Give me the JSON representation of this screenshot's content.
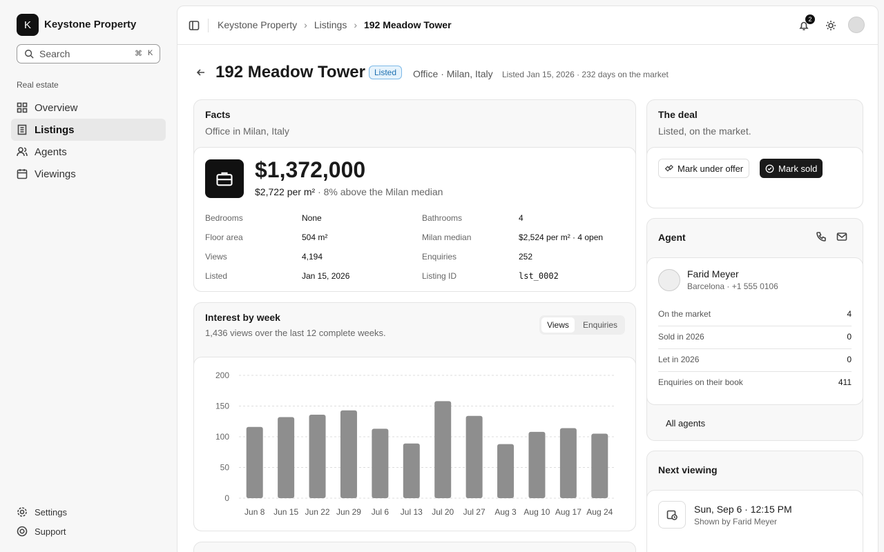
{
  "sidebar": {
    "brand_initial": "K",
    "brand": "Keystone Property",
    "search": "Search",
    "shortcut": [
      "⌘",
      "K"
    ],
    "section": "Real estate",
    "nav": [
      "Overview",
      "Listings",
      "Agents",
      "Viewings"
    ],
    "footer": [
      "Settings",
      "Support"
    ]
  },
  "header": {
    "breadcrumb": [
      "Keystone Property",
      "Listings",
      "192 Meadow Tower"
    ],
    "notifications": "2"
  },
  "listing": {
    "title": "192 Meadow Tower",
    "status": "Listed",
    "meta": "Office · Milan, Italy",
    "listed": "Listed Jan 15, 2026 · 232 days on the market"
  },
  "facts": {
    "title": "Facts",
    "subtitle": "Office in Milan, Italy",
    "price": "$1,372,000",
    "price_per_area": "$2,722 per m²",
    "price_compare": "· 8% above the Milan median",
    "rows": [
      [
        "Bedrooms",
        "None",
        "Bathrooms",
        "4"
      ],
      [
        "Floor area",
        "504 m²",
        "Milan median",
        "$2,524 per m² · 4 open"
      ],
      [
        "Views",
        "4,194",
        "Enquiries",
        "252"
      ],
      [
        "Listed",
        "Jan 15, 2026",
        "Listing ID",
        "lst_0002"
      ]
    ]
  },
  "deal": {
    "title": "The deal",
    "subtitle": "Listed, on the market.",
    "actions": [
      "Mark under offer",
      "Mark sold"
    ]
  },
  "agent": {
    "title": "Agent",
    "name": "Farid Meyer",
    "info": "Barcelona · +1 555 0106",
    "stats": [
      [
        "On the market",
        "4"
      ],
      [
        "Sold in 2026",
        "0"
      ],
      [
        "Let in 2026",
        "0"
      ],
      [
        "Enquiries on their book",
        "411"
      ]
    ],
    "link": "All agents"
  },
  "viewing": {
    "title": "Next viewing",
    "date": "Sun, Sep 6 · 12:15 PM",
    "by": "Shown by Farid Meyer"
  },
  "chart_data": {
    "type": "bar",
    "title": "Interest by week",
    "subtitle": "1,436 views over the last 12 complete weeks.",
    "toggle": [
      "Views",
      "Enquiries"
    ],
    "categories": [
      "Jun 8",
      "Jun 15",
      "Jun 22",
      "Jun 29",
      "Jul 6",
      "Jul 13",
      "Jul 20",
      "Jul 27",
      "Aug 3",
      "Aug 10",
      "Aug 17",
      "Aug 24"
    ],
    "values": [
      116,
      132,
      136,
      143,
      113,
      89,
      158,
      134,
      88,
      108,
      114,
      105
    ],
    "color": "#8e8e8e",
    "ylim": [
      0,
      200
    ],
    "yticks": [
      0,
      50,
      100,
      150,
      200
    ],
    "grid": true
  }
}
